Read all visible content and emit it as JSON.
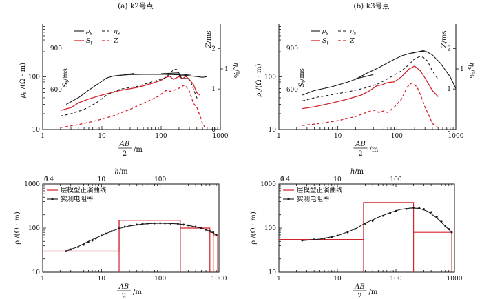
{
  "figure": {
    "colors": {
      "black": "#1a1a1a",
      "red": "#d2232a"
    },
    "panels": {
      "a": {
        "title": "(a) k2号点"
      },
      "b": {
        "title": "(b) k3号点"
      }
    },
    "common": {
      "x_label_top": "AB",
      "x_label_bottom": "2",
      "x_unit": "/m",
      "rho_axis_label": "ρs /(Ω · m)",
      "rho_axis_label_plain": "ρs/(Ω · m)",
      "st_axis_label": "St/ms",
      "z_axis_label": "Z/ms",
      "eta_axis_label": "ηs/%",
      "h_axis_label": "h/m",
      "rho_axis_label_bottom": "ρ /(Ω · m)",
      "legend_top": {
        "rho": "ρs",
        "eta": "ηs",
        "st": "St",
        "z": "Z"
      },
      "legend_bottom": {
        "model": "层模型正演曲线",
        "measured": "实测电阻率"
      }
    }
  },
  "chart_data": [
    {
      "id": "a-top",
      "type": "line",
      "title": "(a) k2号点",
      "xlabel": "AB/2 /m",
      "x_scale": "log",
      "xlim": [
        1,
        1000
      ],
      "x_ticks": [
        "1",
        "10",
        "100",
        "1000"
      ],
      "ylabel": "ρs /(Ω · m)",
      "y_scale": "log",
      "ylim": [
        10,
        1000
      ],
      "y_ticks": [
        "10",
        "100"
      ],
      "st_axis": {
        "label": "St/ms",
        "ticks": [
          "900",
          "600"
        ]
      },
      "z_axis": {
        "label": "Z/ms",
        "ticks": [
          "0",
          "1",
          "2"
        ],
        "lim": [
          0,
          2.6
        ]
      },
      "eta_axis": {
        "label": "ηs/%",
        "ticks": [
          "1"
        ]
      },
      "legend": [
        "ρs",
        "ηs",
        "St",
        "Z"
      ],
      "series": [
        {
          "name": "ρs",
          "color": "black",
          "dash": "solid",
          "axis": "rho",
          "x": [
            2.5,
            4,
            6,
            9,
            12,
            16,
            20,
            30,
            50,
            80,
            120,
            200,
            300,
            400,
            500,
            600
          ],
          "y": [
            30,
            40,
            56,
            76,
            95,
            104,
            107,
            110,
            111,
            111,
            111,
            109,
            105,
            101,
            98,
            101
          ]
        },
        {
          "name": "ρs segment",
          "color": "black",
          "dash": "solid",
          "axis": "rho",
          "x": [
            20,
            35
          ],
          "y": [
            106,
            116
          ]
        },
        {
          "name": "ρs segment",
          "color": "black",
          "dash": "solid",
          "axis": "rho",
          "x": [
            100,
            200
          ],
          "y": [
            114,
            119
          ]
        },
        {
          "name": "ρs segment",
          "color": "black",
          "dash": "solid",
          "axis": "rho",
          "x": [
            200,
            320
          ],
          "y": [
            106,
            112
          ]
        },
        {
          "name": "St",
          "color": "red",
          "dash": "solid",
          "axis": "rho",
          "x": [
            2,
            3,
            4,
            6,
            10,
            20,
            40,
            70,
            100,
            120,
            140,
            160,
            180,
            200,
            230,
            260,
            300,
            350,
            400,
            450
          ],
          "y": [
            23,
            26,
            32,
            38,
            45,
            55,
            63,
            75,
            86,
            98,
            102,
            90,
            95,
            101,
            92,
            102,
            89,
            72,
            50,
            45
          ]
        },
        {
          "name": "ηs",
          "color": "black",
          "dash": "dashed",
          "axis": "rho",
          "x": [
            2,
            3,
            5,
            8,
            12,
            20,
            40,
            70,
            100,
            120,
            140,
            160,
            180,
            200,
            220,
            250,
            280,
            320,
            370,
            420
          ],
          "y": [
            18,
            20,
            24,
            32,
            45,
            58,
            66,
            80,
            90,
            97,
            115,
            135,
            140,
            118,
            95,
            92,
            96,
            78,
            50,
            35
          ]
        },
        {
          "name": "Z",
          "color": "red",
          "dash": "dashed",
          "axis": "z",
          "x": [
            2,
            4,
            8,
            15,
            30,
            60,
            90,
            120,
            150,
            200,
            250,
            300,
            350,
            400,
            450,
            500,
            550
          ],
          "y": [
            0.05,
            0.12,
            0.22,
            0.33,
            0.5,
            0.7,
            0.82,
            0.96,
            0.94,
            1.02,
            1.1,
            0.95,
            0.65,
            0.55,
            0.35,
            0.15,
            0.05
          ]
        }
      ]
    },
    {
      "id": "b-top",
      "type": "line",
      "title": "(b) k3号点",
      "xlabel": "AB/2 /m",
      "x_scale": "log",
      "xlim": [
        1,
        1000
      ],
      "x_ticks": [
        "1",
        "10",
        "100",
        "1000"
      ],
      "ylabel": "ρs/(Ω · m)",
      "y_scale": "log",
      "ylim": [
        10,
        1000
      ],
      "y_ticks": [
        "10",
        "100"
      ],
      "st_axis": {
        "label": "St/ms",
        "ticks": [
          "900",
          "600"
        ]
      },
      "z_axis": {
        "label": "Z/ms",
        "ticks": [
          "0",
          "1",
          "2"
        ],
        "lim": [
          0,
          2.6
        ]
      },
      "eta_axis": {
        "label": "ηs/%",
        "ticks": [
          "1"
        ]
      },
      "legend": [
        "ρs",
        "ηs",
        "St",
        "Z"
      ],
      "series": [
        {
          "name": "ρs",
          "color": "black",
          "dash": "solid",
          "axis": "rho",
          "x": [
            2.5,
            4,
            8,
            15,
            20,
            30,
            50,
            80,
            120,
            160,
            200,
            240,
            280,
            320,
            400,
            550,
            800,
            1000
          ],
          "y": [
            45,
            55,
            65,
            80,
            90,
            115,
            150,
            200,
            250,
            275,
            290,
            300,
            305,
            300,
            260,
            180,
            100,
            60
          ]
        },
        {
          "name": "ρs segment",
          "color": "black",
          "dash": "solid",
          "axis": "rho",
          "x": [
            20,
            40
          ],
          "y": [
            92,
            110
          ]
        },
        {
          "name": "ρs segment",
          "color": "black",
          "dash": "solid",
          "axis": "rho",
          "x": [
            180,
            300
          ],
          "y": [
            280,
            320
          ]
        },
        {
          "name": "St",
          "color": "red",
          "dash": "solid",
          "axis": "rho",
          "x": [
            2.5,
            4,
            8,
            15,
            25,
            35,
            45,
            55,
            70,
            90,
            120,
            160,
            200,
            250,
            300,
            400,
            500
          ],
          "y": [
            25,
            27,
            32,
            38,
            45,
            55,
            67,
            70,
            78,
            80,
            100,
            140,
            160,
            130,
            95,
            55,
            42
          ]
        },
        {
          "name": "ηs",
          "color": "black",
          "dash": "dashed",
          "axis": "rho",
          "x": [
            2.5,
            4,
            8,
            15,
            30,
            50,
            80,
            120,
            160,
            200,
            240,
            280,
            330,
            400,
            500
          ],
          "y": [
            35,
            40,
            46,
            52,
            62,
            75,
            100,
            130,
            170,
            220,
            240,
            235,
            200,
            130,
            90
          ]
        },
        {
          "name": "Z",
          "color": "red",
          "dash": "dashed",
          "axis": "z",
          "x": [
            2.5,
            5,
            10,
            20,
            30,
            40,
            50,
            60,
            70,
            90,
            120,
            150,
            180,
            220,
            260,
            300,
            350,
            400,
            500
          ],
          "y": [
            0.1,
            0.15,
            0.22,
            0.32,
            0.42,
            0.48,
            0.42,
            0.46,
            0.42,
            0.55,
            0.75,
            1.05,
            1.15,
            1.05,
            0.8,
            0.55,
            0.35,
            0.15,
            0.05
          ]
        }
      ]
    },
    {
      "id": "a-bottom",
      "type": "line",
      "title": "",
      "xlabel": "AB/2 /m",
      "x_scale": "log",
      "xlim": [
        1,
        1000
      ],
      "x_ticks": [
        "1",
        "10",
        "100",
        "1000"
      ],
      "h_axis": {
        "label": "h/m",
        "ticks": [
          "0.4",
          "1",
          "10",
          "100"
        ]
      },
      "ylabel": "ρ /(Ω · m)",
      "y_scale": "log",
      "ylim": [
        10,
        1000
      ],
      "y_ticks": [
        "10",
        "100",
        "1000"
      ],
      "legend": [
        "层模型正演曲线",
        "实测电阻率"
      ],
      "model_steps": [
        {
          "x": [
            1,
            20
          ],
          "y": [
            30,
            30
          ]
        },
        {
          "x": [
            20,
            220
          ],
          "y": [
            150,
            150
          ]
        },
        {
          "x": [
            220,
            700
          ],
          "y": [
            100,
            100
          ]
        },
        {
          "x": [
            700,
            800
          ],
          "y": [
            80,
            80
          ]
        },
        {
          "x": [
            800,
            950
          ],
          "y": [
            70,
            70
          ]
        }
      ],
      "measured": {
        "x": [
          2.5,
          3,
          4,
          5,
          6,
          7,
          8,
          10,
          12,
          15,
          20,
          25,
          30,
          40,
          50,
          60,
          80,
          100,
          120,
          150,
          200,
          250,
          300,
          400,
          500,
          600,
          700,
          800,
          900
        ],
        "y": [
          30,
          33,
          37,
          42,
          48,
          52,
          58,
          68,
          75,
          85,
          98,
          108,
          115,
          120,
          125,
          127,
          128,
          129,
          128,
          127,
          125,
          120,
          115,
          108,
          100,
          92,
          85,
          80,
          70
        ]
      },
      "fit": {
        "x": [
          2.5,
          4,
          6,
          10,
          15,
          20,
          30,
          50,
          80,
          120,
          200,
          300,
          500,
          700,
          900
        ],
        "y": [
          30,
          38,
          50,
          68,
          85,
          98,
          112,
          123,
          128,
          128,
          125,
          115,
          100,
          85,
          70
        ]
      }
    },
    {
      "id": "b-bottom",
      "type": "line",
      "title": "",
      "xlabel": "AB/2 /m",
      "x_scale": "log",
      "xlim": [
        1,
        1000
      ],
      "x_ticks": [
        "1",
        "10",
        "100",
        "1000"
      ],
      "h_axis": {
        "label": "h/m",
        "ticks": [
          "0.4",
          "1",
          "10",
          "100"
        ]
      },
      "ylabel": "ρ /(Ω · m)",
      "y_scale": "log",
      "ylim": [
        10,
        1000
      ],
      "y_ticks": [
        "10",
        "100",
        "1000"
      ],
      "legend": [
        "层模型正演曲线",
        "实测电阻率"
      ],
      "model_steps": [
        {
          "x": [
            1,
            28
          ],
          "y": [
            55,
            55
          ]
        },
        {
          "x": [
            28,
            200
          ],
          "y": [
            380,
            380
          ]
        },
        {
          "x": [
            200,
            900
          ],
          "y": [
            80,
            80
          ]
        }
      ],
      "measured": {
        "x": [
          2.5,
          4,
          6,
          8,
          10,
          15,
          20,
          30,
          40,
          60,
          80,
          100,
          150,
          200,
          250,
          300,
          400,
          500,
          600,
          700,
          800,
          900
        ],
        "y": [
          52,
          55,
          58,
          63,
          68,
          80,
          95,
          125,
          145,
          190,
          220,
          245,
          270,
          290,
          285,
          270,
          230,
          180,
          140,
          110,
          95,
          80
        ]
      },
      "fit": {
        "x": [
          2.5,
          5,
          10,
          20,
          30,
          50,
          80,
          120,
          180,
          250,
          350,
          500,
          700,
          900
        ],
        "y": [
          52,
          56,
          67,
          95,
          130,
          175,
          225,
          265,
          285,
          280,
          240,
          170,
          110,
          80
        ]
      }
    }
  ]
}
